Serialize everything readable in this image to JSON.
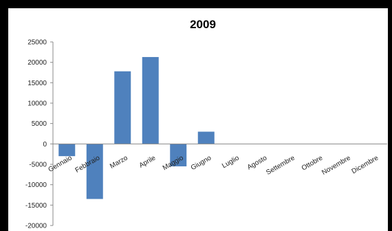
{
  "chart_data": {
    "type": "bar",
    "title": "2009",
    "xlabel": "",
    "ylabel": "",
    "categories": [
      "Gennaio",
      "Febbraio",
      "Marzo",
      "Aprile",
      "Maggio",
      "Giugno",
      "Luglio",
      "Agosto",
      "Settembre",
      "Ottobre",
      "Novembre",
      "Dicembre"
    ],
    "values": [
      -3000,
      -13500,
      17800,
      21300,
      -5500,
      3000,
      0,
      0,
      0,
      0,
      0,
      0
    ],
    "ylim": [
      -20000,
      25000
    ],
    "yticks": [
      25000,
      20000,
      15000,
      10000,
      5000,
      0,
      -5000,
      -10000,
      -15000,
      -20000
    ],
    "grid": false,
    "bar_color": "#4f81bd",
    "legend": "none"
  }
}
